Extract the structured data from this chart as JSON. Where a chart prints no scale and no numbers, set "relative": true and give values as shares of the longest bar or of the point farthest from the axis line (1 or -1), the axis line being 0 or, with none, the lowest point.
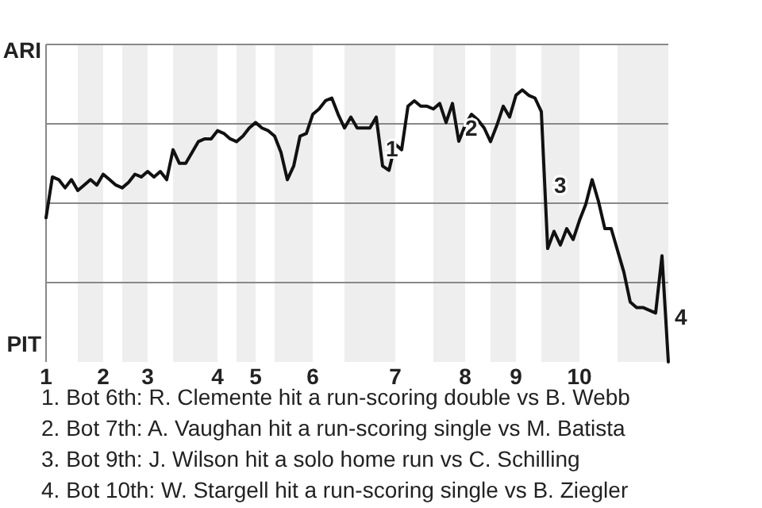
{
  "chart_data": {
    "type": "line",
    "relative": true,
    "categories": [
      "1",
      null,
      null,
      null,
      null,
      null,
      null,
      null,
      null,
      "2",
      null,
      null,
      null,
      null,
      null,
      null,
      "3",
      null,
      null,
      null,
      null,
      null,
      null,
      null,
      null,
      null,
      null,
      "4",
      null,
      null,
      null,
      null,
      null,
      "5",
      null,
      null,
      null,
      null,
      null,
      null,
      null,
      null,
      "6",
      null,
      null,
      null,
      null,
      null,
      null,
      null,
      null,
      null,
      null,
      null,
      null,
      "7",
      null,
      null,
      null,
      null,
      null,
      null,
      null,
      null,
      null,
      null,
      "8",
      null,
      null,
      null,
      null,
      null,
      null,
      null,
      "9",
      null,
      null,
      null,
      null,
      null,
      null,
      null,
      null,
      null,
      "10",
      null,
      null,
      null,
      null,
      null,
      null,
      null,
      null,
      null,
      null,
      null,
      null,
      null,
      null
    ],
    "series": [
      {
        "color": "#111111",
        "values": [
          0.53,
          0.68,
          0.67,
          0.64,
          0.67,
          0.63,
          0.65,
          0.67,
          0.65,
          0.69,
          0.67,
          0.65,
          0.64,
          0.66,
          0.69,
          0.68,
          0.7,
          0.68,
          0.7,
          0.67,
          0.78,
          0.73,
          0.73,
          0.77,
          0.81,
          0.82,
          0.82,
          0.85,
          0.84,
          0.82,
          0.81,
          0.83,
          0.86,
          0.88,
          0.86,
          0.85,
          0.83,
          0.77,
          0.67,
          0.72,
          0.83,
          0.84,
          0.91,
          0.93,
          0.96,
          0.97,
          0.91,
          0.86,
          0.9,
          0.86,
          0.86,
          0.86,
          0.9,
          0.72,
          0.704,
          0.8,
          0.78,
          0.94,
          0.96,
          0.94,
          0.94,
          0.93,
          0.95,
          0.88,
          0.95,
          0.811,
          0.87,
          0.91,
          0.89,
          0.86,
          0.81,
          0.87,
          0.94,
          0.9,
          0.98,
          1,
          0.98,
          0.97,
          0.92,
          0.417,
          0.48,
          0.43,
          0.49,
          0.45,
          0.52,
          0.58,
          0.67,
          0.59,
          0.49,
          0.49,
          0.41,
          0.33,
          0.22,
          0.2,
          0.2,
          0.19,
          0.18,
          0.39,
          0
        ]
      }
    ],
    "grid": "y",
    "annotations": [
      "ARI",
      "PIT",
      "1",
      "2",
      "3",
      "4",
      "1. Bot 6th: R. Clemente hit a run-scoring double vs B. Webb",
      "2. Bot 7th: A. Vaughan hit a run-scoring single vs M. Batista",
      "3. Bot 9th: J. Wilson hit a solo home run vs C. Schilling",
      "4. Bot 10th: W. Stargell hit a run-scoring single vs B. Ziegler"
    ],
    "marker": "none",
    "line_style": "solid"
  }
}
